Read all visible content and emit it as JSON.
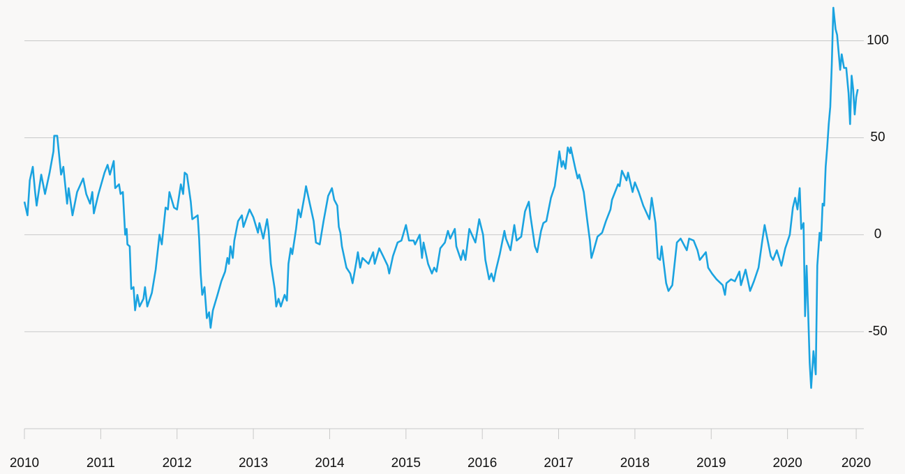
{
  "chart_data": {
    "type": "line",
    "color": "#1aa3e0",
    "grid": true,
    "xlim": [
      2010,
      2021
    ],
    "ylim": [
      -100,
      121
    ],
    "xticks": [
      2010,
      2011,
      2012,
      2013,
      2014,
      2015,
      2016,
      2017,
      2018,
      2019,
      2020,
      {
        "value": 2020.9,
        "label": "2020"
      }
    ],
    "yticks": [
      -50,
      0,
      50,
      100
    ],
    "x": [
      2010.0,
      2010.04,
      2010.07,
      2010.11,
      2010.14,
      2010.16,
      2010.22,
      2010.27,
      2010.33,
      2010.38,
      2010.39,
      2010.43,
      2010.48,
      2010.51,
      2010.56,
      2010.58,
      2010.63,
      2010.69,
      2010.77,
      2010.81,
      2010.86,
      2010.89,
      2010.91,
      2010.97,
      2011.05,
      2011.09,
      2011.12,
      2011.17,
      2011.19,
      2011.24,
      2011.26,
      2011.29,
      2011.32,
      2011.34,
      2011.35,
      2011.38,
      2011.4,
      2011.43,
      2011.45,
      2011.48,
      2011.51,
      2011.56,
      2011.58,
      2011.61,
      2011.67,
      2011.72,
      2011.77,
      2011.8,
      2011.85,
      2011.88,
      2011.9,
      2011.96,
      2012.0,
      2012.05,
      2012.08,
      2012.1,
      2012.13,
      2012.18,
      2012.2,
      2012.27,
      2012.29,
      2012.31,
      2012.33,
      2012.36,
      2012.39,
      2012.42,
      2012.44,
      2012.47,
      2012.53,
      2012.58,
      2012.63,
      2012.66,
      2012.68,
      2012.7,
      2012.73,
      2012.75,
      2012.8,
      2012.85,
      2012.87,
      2012.95,
      2013.0,
      2013.06,
      2013.08,
      2013.13,
      2013.18,
      2013.2,
      2013.23,
      2013.28,
      2013.3,
      2013.33,
      2013.36,
      2013.41,
      2013.44,
      2013.46,
      2013.49,
      2013.51,
      2013.56,
      2013.59,
      2013.62,
      2013.67,
      2013.69,
      2013.74,
      2013.79,
      2013.82,
      2013.87,
      2013.92,
      2013.98,
      2014.03,
      2014.06,
      2014.1,
      2014.12,
      2014.14,
      2014.16,
      2014.22,
      2014.27,
      2014.3,
      2014.35,
      2014.37,
      2014.4,
      2014.43,
      2014.51,
      2014.57,
      2014.59,
      2014.65,
      2014.7,
      2014.76,
      2014.78,
      2014.83,
      2014.89,
      2014.94,
      2015.0,
      2015.04,
      2015.1,
      2015.12,
      2015.18,
      2015.21,
      2015.23,
      2015.29,
      2015.34,
      2015.37,
      2015.4,
      2015.45,
      2015.51,
      2015.55,
      2015.58,
      2015.64,
      2015.66,
      2015.72,
      2015.75,
      2015.78,
      2015.83,
      2015.91,
      2015.96,
      2016.01,
      2016.04,
      2016.09,
      2016.12,
      2016.15,
      2016.18,
      2016.23,
      2016.29,
      2016.31,
      2016.37,
      2016.42,
      2016.45,
      2016.51,
      2016.56,
      2016.61,
      2016.63,
      2016.69,
      2016.72,
      2016.77,
      2016.8,
      2016.84,
      2016.9,
      2016.95,
      2017.01,
      2017.04,
      2017.06,
      2017.09,
      2017.12,
      2017.15,
      2017.16,
      2017.22,
      2017.25,
      2017.27,
      2017.33,
      2017.38,
      2017.41,
      2017.43,
      2017.46,
      2017.51,
      2017.57,
      2017.62,
      2017.68,
      2017.7,
      2017.78,
      2017.8,
      2017.83,
      2017.89,
      2017.91,
      2017.97,
      2018.0,
      2018.05,
      2018.11,
      2018.19,
      2018.22,
      2018.27,
      2018.3,
      2018.33,
      2018.35,
      2018.41,
      2018.44,
      2018.49,
      2018.55,
      2018.6,
      2018.68,
      2018.71,
      2018.77,
      2018.82,
      2018.85,
      2018.93,
      2018.96,
      2019.01,
      2019.07,
      2019.15,
      2019.18,
      2019.2,
      2019.26,
      2019.31,
      2019.37,
      2019.39,
      2019.45,
      2019.51,
      2019.56,
      2019.62,
      2019.67,
      2019.7,
      2019.73,
      2019.78,
      2019.81,
      2019.86,
      2019.92,
      2019.97,
      2020.03,
      2020.07,
      2020.1,
      2020.13,
      2020.16,
      2020.18,
      2020.21,
      2020.23,
      2020.25,
      2020.27,
      2020.29,
      2020.31,
      2020.34,
      2020.37,
      2020.39,
      2020.42,
      2020.44,
      2020.46,
      2020.48,
      2020.5,
      2020.52,
      2020.54,
      2020.56,
      2020.58,
      2020.6,
      2020.63,
      2020.65,
      2020.69,
      2020.71,
      2020.74,
      2020.77,
      2020.8,
      2020.82,
      2020.84,
      2020.86,
      2020.88,
      2020.9,
      2020.92
    ],
    "values": [
      17,
      10,
      28,
      35,
      22,
      15,
      31,
      21,
      32,
      43,
      51,
      51,
      31,
      35,
      16,
      24,
      10,
      22,
      29,
      21,
      16,
      22,
      11,
      21,
      32,
      36,
      31,
      38,
      24,
      26,
      21,
      22,
      0,
      3,
      -5,
      -6,
      -28,
      -27,
      -39,
      -31,
      -37,
      -33,
      -27,
      -37,
      -30,
      -18,
      0,
      -5,
      14,
      13,
      22,
      14,
      13,
      26,
      21,
      32,
      31,
      17,
      8,
      10,
      -2,
      -20,
      -31,
      -27,
      -43,
      -40,
      -48,
      -39,
      -31,
      -24,
      -19,
      -12,
      -15,
      -6,
      -12,
      -3,
      7,
      10,
      4,
      13,
      9,
      1,
      6,
      -2,
      8,
      2,
      -15,
      -28,
      -37,
      -33,
      -37,
      -31,
      -34,
      -15,
      -7,
      -10,
      3,
      13,
      9,
      20,
      25,
      16,
      7,
      -4,
      -5,
      7,
      20,
      24,
      18,
      15,
      4,
      1,
      -6,
      -17,
      -20,
      -25,
      -14,
      -9,
      -17,
      -12,
      -15,
      -9,
      -15,
      -7,
      -11,
      -16,
      -20,
      -11,
      -4,
      -3,
      5,
      -3,
      -3,
      -5,
      0,
      -12,
      -4,
      -15,
      -20,
      -17,
      -19,
      -7,
      -4,
      2,
      -2,
      3,
      -6,
      -13,
      -8,
      -13,
      3,
      -4,
      8,
      0,
      -13,
      -23,
      -20,
      -24,
      -18,
      -10,
      2,
      -2,
      -8,
      5,
      -3,
      -1,
      12,
      17,
      10,
      -6,
      -9,
      2,
      6,
      7,
      19,
      25,
      43,
      35,
      38,
      34,
      45,
      42,
      45,
      34,
      29,
      31,
      22,
      6,
      -3,
      -12,
      -8,
      -1,
      1,
      7,
      13,
      18,
      26,
      25,
      33,
      28,
      32,
      22,
      27,
      22,
      15,
      8,
      19,
      6,
      -12,
      -13,
      -6,
      -25,
      -29,
      -26,
      -4,
      -2,
      -8,
      -2,
      -3,
      -8,
      -13,
      -9,
      -17,
      -20,
      -23,
      -26,
      -31,
      -25,
      -23,
      -24,
      -19,
      -26,
      -18,
      -29,
      -24,
      -17,
      -3,
      5,
      -1,
      -11,
      -13,
      -8,
      -16,
      -7,
      0,
      14,
      19,
      13,
      24,
      3,
      6,
      -42,
      -16,
      -40,
      -66,
      -79,
      -60,
      -72,
      -16,
      1,
      -3,
      16,
      15,
      35,
      45,
      57,
      66,
      88,
      117,
      106,
      103,
      85,
      93,
      86,
      86,
      73,
      57,
      82,
      75,
      62,
      71,
      75
    ]
  }
}
